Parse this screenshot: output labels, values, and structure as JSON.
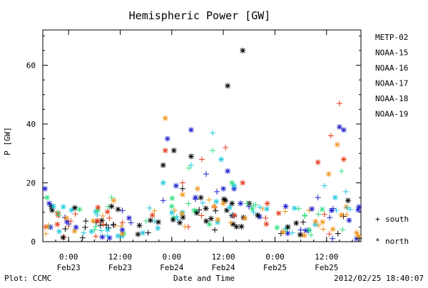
{
  "footer": {
    "left": "Plot: CCMC",
    "center": "Date and Time",
    "right": "2012/02/25 18:40:07"
  },
  "legend_markers": {
    "south_symbol": "+",
    "south_label": "south",
    "north_symbol": "*",
    "north_label": "north"
  },
  "chart_data": {
    "type": "scatter",
    "title": "Hemispheric Power [GW]",
    "xlabel": "Date and Time",
    "ylabel": "P [GW]",
    "ylim": [
      0,
      72
    ],
    "xlim": [
      "2012-02-22T18:00",
      "2012-02-25T20:00"
    ],
    "yticks": [
      0,
      20,
      40,
      60
    ],
    "xticks": [
      {
        "x": "2012-02-23T00:00",
        "time": "0:00",
        "day": "Feb23"
      },
      {
        "x": "2012-02-23T12:00",
        "time": "12:00",
        "day": "Feb23"
      },
      {
        "x": "2012-02-24T00:00",
        "time": "0:00",
        "day": "Feb24"
      },
      {
        "x": "2012-02-24T12:00",
        "time": "12:00",
        "day": "Feb24"
      },
      {
        "x": "2012-02-25T00:00",
        "time": "0:00",
        "day": "Feb25"
      },
      {
        "x": "2012-02-25T12:00",
        "time": "12:00",
        "day": "Feb25"
      }
    ],
    "grid": false,
    "legend_position": "right",
    "marker_legend": [
      {
        "marker": "+",
        "label": "south"
      },
      {
        "marker": "*",
        "label": "north"
      }
    ],
    "series": [
      {
        "name": "METP-02",
        "color": "#000000",
        "points": [
          {
            "x": "2012-02-22T20:00",
            "y": 12,
            "hemi": "north"
          },
          {
            "x": "2012-02-23T04:00",
            "y": 7,
            "hemi": "south"
          },
          {
            "x": "2012-02-23T10:00",
            "y": 12,
            "hemi": "north"
          },
          {
            "x": "2012-02-23T11:30",
            "y": 11,
            "hemi": "north"
          },
          {
            "x": "2012-02-23T18:30",
            "y": 3,
            "hemi": "south"
          },
          {
            "x": "2012-02-23T22:00",
            "y": 26,
            "hemi": "north"
          },
          {
            "x": "2012-02-24T00:30",
            "y": 31,
            "hemi": "north"
          },
          {
            "x": "2012-02-24T02:30",
            "y": 18,
            "hemi": "south"
          },
          {
            "x": "2012-02-24T04:30",
            "y": 29,
            "hemi": "north"
          },
          {
            "x": "2012-02-24T08:00",
            "y": 7,
            "hemi": "north"
          },
          {
            "x": "2012-02-24T10:00",
            "y": 4,
            "hemi": "south"
          },
          {
            "x": "2012-02-24T12:30",
            "y": 14,
            "hemi": "north"
          },
          {
            "x": "2012-02-24T13:00",
            "y": 53,
            "hemi": "north"
          },
          {
            "x": "2012-02-24T14:00",
            "y": 13,
            "hemi": "north"
          },
          {
            "x": "2012-02-24T16:30",
            "y": 65,
            "hemi": "north"
          },
          {
            "x": "2012-02-24T18:00",
            "y": 13,
            "hemi": "north"
          },
          {
            "x": "2012-02-24T20:00",
            "y": 9,
            "hemi": "north"
          },
          {
            "x": "2012-02-25T03:00",
            "y": 5,
            "hemi": "north"
          },
          {
            "x": "2012-02-25T17:00",
            "y": 14,
            "hemi": "north"
          }
        ]
      },
      {
        "name": "NOAA-15",
        "color": "#1c1ccc",
        "points": [
          {
            "x": "2012-02-22T18:30",
            "y": 18,
            "hemi": "north"
          },
          {
            "x": "2012-02-22T19:30",
            "y": 13,
            "hemi": "north"
          },
          {
            "x": "2012-02-23T00:00",
            "y": 6,
            "hemi": "south"
          },
          {
            "x": "2012-02-23T12:30",
            "y": 4,
            "hemi": "north"
          },
          {
            "x": "2012-02-23T22:00",
            "y": 14,
            "hemi": "south"
          },
          {
            "x": "2012-02-23T23:00",
            "y": 35,
            "hemi": "north"
          },
          {
            "x": "2012-02-24T01:00",
            "y": 19,
            "hemi": "north"
          },
          {
            "x": "2012-02-24T04:30",
            "y": 38,
            "hemi": "north"
          },
          {
            "x": "2012-02-24T05:30",
            "y": 15,
            "hemi": "north"
          },
          {
            "x": "2012-02-24T08:00",
            "y": 23,
            "hemi": "south"
          },
          {
            "x": "2012-02-24T10:30",
            "y": 17,
            "hemi": "south"
          },
          {
            "x": "2012-02-24T12:00",
            "y": 18,
            "hemi": "north"
          },
          {
            "x": "2012-02-24T13:00",
            "y": 24,
            "hemi": "north"
          },
          {
            "x": "2012-02-24T14:30",
            "y": 18,
            "hemi": "north"
          },
          {
            "x": "2012-02-24T16:00",
            "y": 13,
            "hemi": "north"
          },
          {
            "x": "2012-02-25T02:30",
            "y": 12,
            "hemi": "north"
          },
          {
            "x": "2012-02-25T06:00",
            "y": 4,
            "hemi": "south"
          },
          {
            "x": "2012-02-25T10:00",
            "y": 15,
            "hemi": "south"
          },
          {
            "x": "2012-02-25T15:00",
            "y": 39,
            "hemi": "north"
          },
          {
            "x": "2012-02-25T16:00",
            "y": 38,
            "hemi": "north"
          }
        ]
      },
      {
        "name": "NOAA-16",
        "color": "#20c8e0",
        "points": [
          {
            "x": "2012-02-22T20:30",
            "y": 12,
            "hemi": "north"
          },
          {
            "x": "2012-02-23T03:30",
            "y": 3,
            "hemi": "south"
          },
          {
            "x": "2012-02-23T09:00",
            "y": 2,
            "hemi": "south"
          },
          {
            "x": "2012-02-23T20:00",
            "y": 7,
            "hemi": "south"
          },
          {
            "x": "2012-02-23T22:00",
            "y": 20,
            "hemi": "north"
          },
          {
            "x": "2012-02-24T04:30",
            "y": 26,
            "hemi": "south"
          },
          {
            "x": "2012-02-24T09:30",
            "y": 37,
            "hemi": "south"
          },
          {
            "x": "2012-02-24T11:30",
            "y": 28,
            "hemi": "north"
          },
          {
            "x": "2012-02-24T14:30",
            "y": 19,
            "hemi": "north"
          },
          {
            "x": "2012-02-24T19:00",
            "y": 10,
            "hemi": "south"
          },
          {
            "x": "2012-02-25T04:00",
            "y": 3,
            "hemi": "south"
          },
          {
            "x": "2012-02-25T11:30",
            "y": 19,
            "hemi": "south"
          },
          {
            "x": "2012-02-25T14:00",
            "y": 15,
            "hemi": "north"
          },
          {
            "x": "2012-02-25T16:30",
            "y": 17,
            "hemi": "south"
          },
          {
            "x": "2012-02-25T17:30",
            "y": 11,
            "hemi": "south"
          }
        ]
      },
      {
        "name": "NOAA-17",
        "color": "#30e080",
        "points": [
          {
            "x": "2012-02-22T19:00",
            "y": 15,
            "hemi": "north"
          },
          {
            "x": "2012-02-22T21:30",
            "y": 10,
            "hemi": "south"
          },
          {
            "x": "2012-02-23T06:00",
            "y": 4,
            "hemi": "south"
          },
          {
            "x": "2012-02-23T10:00",
            "y": 15,
            "hemi": "south"
          },
          {
            "x": "2012-02-23T18:00",
            "y": 7,
            "hemi": "south"
          },
          {
            "x": "2012-02-24T00:00",
            "y": 12,
            "hemi": "north"
          },
          {
            "x": "2012-02-24T04:00",
            "y": 25,
            "hemi": "south"
          },
          {
            "x": "2012-02-24T09:30",
            "y": 31,
            "hemi": "south"
          },
          {
            "x": "2012-02-24T14:00",
            "y": 20,
            "hemi": "north"
          },
          {
            "x": "2012-02-24T17:30",
            "y": 13,
            "hemi": "south"
          },
          {
            "x": "2012-02-25T07:00",
            "y": 9,
            "hemi": "south"
          },
          {
            "x": "2012-02-25T11:00",
            "y": 11,
            "hemi": "north"
          },
          {
            "x": "2012-02-25T15:30",
            "y": 24,
            "hemi": "south"
          }
        ]
      },
      {
        "name": "NOAA-18",
        "color": "#f0961e",
        "points": [
          {
            "x": "2012-02-22T19:00",
            "y": 5,
            "hemi": "north"
          },
          {
            "x": "2012-02-22T23:30",
            "y": 8,
            "hemi": "north"
          },
          {
            "x": "2012-02-23T10:30",
            "y": 14,
            "hemi": "north"
          },
          {
            "x": "2012-02-23T22:30",
            "y": 42,
            "hemi": "north"
          },
          {
            "x": "2012-02-24T02:30",
            "y": 16,
            "hemi": "north"
          },
          {
            "x": "2012-02-24T06:00",
            "y": 18,
            "hemi": "north"
          },
          {
            "x": "2012-02-24T12:00",
            "y": 13,
            "hemi": "north"
          },
          {
            "x": "2012-02-24T17:00",
            "y": 8,
            "hemi": "north"
          },
          {
            "x": "2012-02-25T12:30",
            "y": 23,
            "hemi": "north"
          },
          {
            "x": "2012-02-25T14:30",
            "y": 33,
            "hemi": "north"
          },
          {
            "x": "2012-02-25T19:00",
            "y": 3,
            "hemi": "north"
          }
        ]
      },
      {
        "name": "NOAA-19",
        "color": "#e43c1c",
        "points": [
          {
            "x": "2012-02-22T18:30",
            "y": 5,
            "hemi": "south"
          },
          {
            "x": "2012-02-23T00:30",
            "y": 7,
            "hemi": "south"
          },
          {
            "x": "2012-02-23T09:30",
            "y": 8,
            "hemi": "south"
          },
          {
            "x": "2012-02-23T19:30",
            "y": 9,
            "hemi": "north"
          },
          {
            "x": "2012-02-23T22:30",
            "y": 31,
            "hemi": "north"
          },
          {
            "x": "2012-02-24T02:30",
            "y": 20,
            "hemi": "south"
          },
          {
            "x": "2012-02-24T07:00",
            "y": 28,
            "hemi": "south"
          },
          {
            "x": "2012-02-24T12:30",
            "y": 32,
            "hemi": "south"
          },
          {
            "x": "2012-02-24T16:30",
            "y": 20,
            "hemi": "north"
          },
          {
            "x": "2012-02-24T22:00",
            "y": 6,
            "hemi": "north"
          },
          {
            "x": "2012-02-25T10:00",
            "y": 27,
            "hemi": "north"
          },
          {
            "x": "2012-02-25T13:00",
            "y": 36,
            "hemi": "south"
          },
          {
            "x": "2012-02-25T15:00",
            "y": 47,
            "hemi": "south"
          },
          {
            "x": "2012-02-25T16:00",
            "y": 28,
            "hemi": "north"
          }
        ]
      }
    ],
    "baseline_cloud": {
      "note_hidden": false,
      "ranges": [
        {
          "from": "2012-02-22T18:00",
          "to": "2012-02-23T22:00",
          "ymin": 1,
          "ymax": 12
        },
        {
          "from": "2012-02-24T00:00",
          "to": "2012-02-24T23:00",
          "ymin": 5,
          "ymax": 15
        },
        {
          "from": "2012-02-25T00:00",
          "to": "2012-02-25T20:00",
          "ymin": 1,
          "ymax": 12
        }
      ]
    }
  }
}
